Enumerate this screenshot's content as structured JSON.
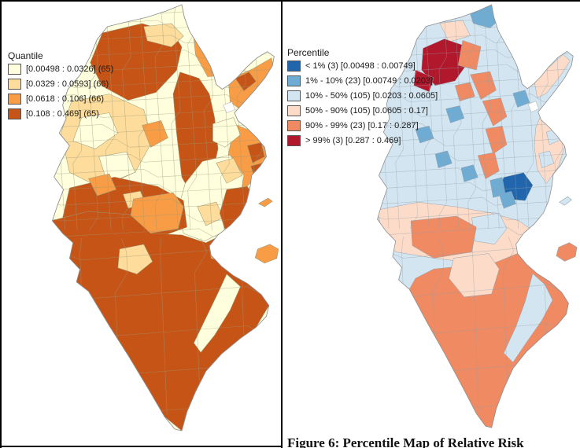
{
  "left_panel": {
    "legend": {
      "title": "Quantile",
      "items": [
        {
          "label": "[0.00498 : 0.0326] (65)",
          "color": "#FFFFDE"
        },
        {
          "label": "[0.0329 : 0.0593] (66)",
          "color": "#FEDC9B"
        },
        {
          "label": "[0.0618 : 0.106] (66)",
          "color": "#F89C45"
        },
        {
          "label": "[0.108 : 0.469] (65)",
          "color": "#C65417"
        }
      ]
    }
  },
  "right_panel": {
    "legend": {
      "title": "Percentile",
      "items": [
        {
          "label": "< 1% (3)  [0.00498 : 0.00749]",
          "color": "#2166AC"
        },
        {
          "label": "1% - 10% (23)  [0.00749 : 0.0203]",
          "color": "#6FACD4"
        },
        {
          "label": "10% - 50% (105)  [0.0203 : 0.0605]",
          "color": "#D3E5F0"
        },
        {
          "label": "50% - 90% (105)  [0.0605 : 0.17]",
          "color": "#FCDBC8"
        },
        {
          "label": "90% - 99% (23)  [0.17 : 0.287]",
          "color": "#EF8A62"
        },
        {
          "label": "> 99% (3)  [0.287 : 0.469]",
          "color": "#B2182B"
        }
      ]
    },
    "caption": "Figure 6: Percentile Map of Relative Risk"
  }
}
